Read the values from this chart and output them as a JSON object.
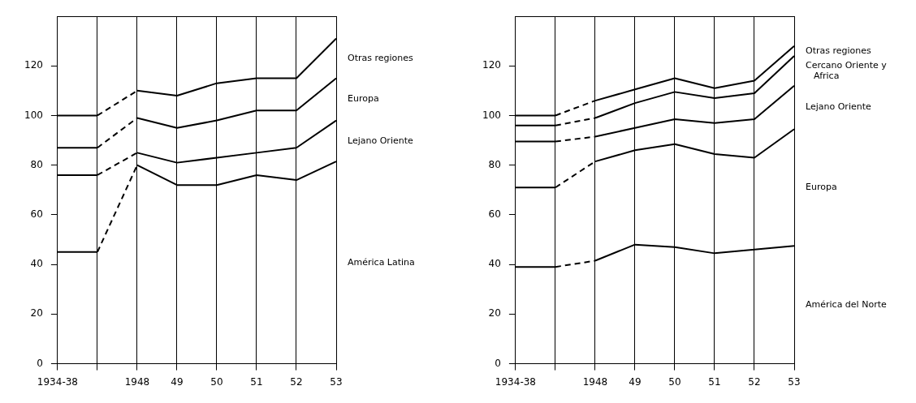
{
  "chart_data": [
    {
      "type": "line",
      "categories": [
        "1934-38",
        null,
        "1948",
        "49",
        "50",
        "51",
        "52",
        "53"
      ],
      "ylim": [
        0,
        140
      ],
      "yticks": [
        0,
        20,
        40,
        60,
        80,
        100,
        120
      ],
      "grid": "x",
      "legend": false,
      "marker": "none",
      "series": [
        {
          "name": "América Latina",
          "color": "#000000",
          "values": [
            45,
            45,
            80,
            72,
            72,
            76,
            74,
            81.5
          ]
        },
        {
          "name": "Lejano Oriente",
          "color": "#000000",
          "values": [
            76,
            76,
            85,
            81,
            83,
            85,
            87,
            98
          ]
        },
        {
          "name": "Europa",
          "color": "#000000",
          "values": [
            87,
            87,
            99,
            95,
            98,
            102,
            102,
            115
          ]
        },
        {
          "name": "Otras regiones",
          "color": "#000000",
          "values": [
            100,
            100,
            110,
            108,
            113,
            115,
            115,
            131
          ]
        }
      ]
    },
    {
      "type": "line",
      "categories": [
        "1934-38",
        null,
        "1948",
        "49",
        "50",
        "51",
        "52",
        "53"
      ],
      "ylim": [
        0,
        140
      ],
      "yticks": [
        0,
        20,
        40,
        60,
        80,
        100,
        120
      ],
      "grid": "x",
      "legend": false,
      "marker": "none",
      "series": [
        {
          "name": "América del Norte",
          "color": "#000000",
          "values": [
            39,
            39,
            41.5,
            48,
            47,
            44.5,
            46,
            47.5
          ]
        },
        {
          "name": "Europa",
          "color": "#000000",
          "values": [
            71,
            71,
            81.5,
            86,
            88.5,
            84.5,
            83,
            94.5
          ]
        },
        {
          "name": "Lejano Oriente",
          "color": "#000000",
          "values": [
            89.5,
            89.5,
            91.5,
            95,
            98.5,
            97,
            98.5,
            112
          ]
        },
        {
          "name": "Cercano Oriente y Africa",
          "color": "#000000",
          "values": [
            96,
            96,
            99,
            105,
            109.5,
            107,
            109,
            124
          ]
        },
        {
          "name": "Otras regiones",
          "color": "#000000",
          "values": [
            100,
            100,
            106,
            110.5,
            115,
            111,
            114,
            128
          ]
        }
      ]
    }
  ]
}
